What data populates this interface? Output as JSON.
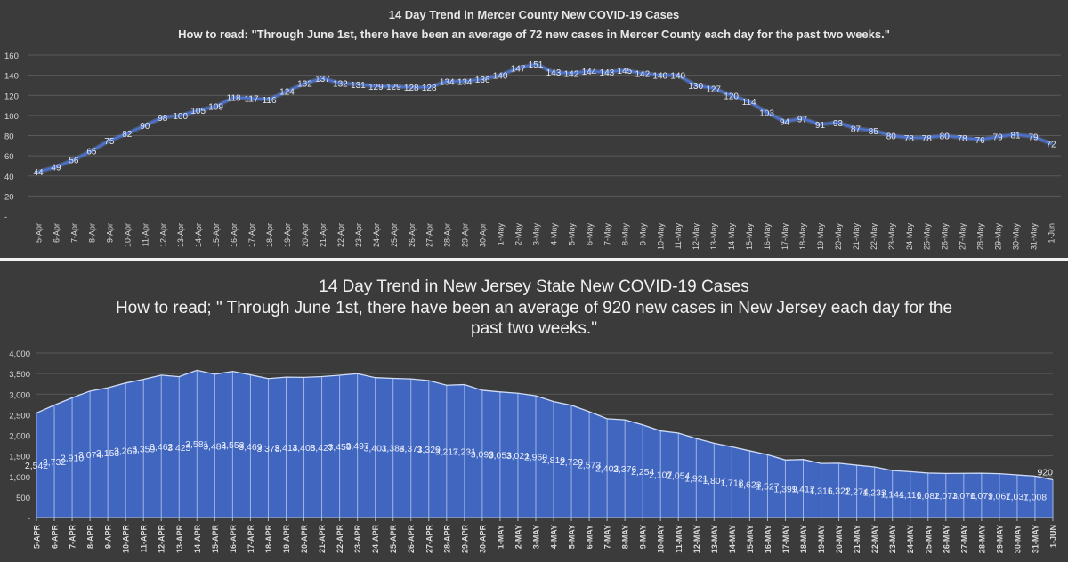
{
  "chart_data": [
    {
      "type": "line",
      "title": "14 Day Trend in Mercer County New COVID-19 Cases",
      "subtitle": "How to read: \"Through June 1st, there have been an average of 72 new cases in Mercer County each day for the past two weeks.\"",
      "xlabel": "",
      "ylabel": "",
      "ylim": [
        0,
        160
      ],
      "yticks": [
        "-",
        "20",
        "40",
        "60",
        "80",
        "100",
        "120",
        "140",
        "160"
      ],
      "grid": true,
      "color": "#4a72d0",
      "categories": [
        "5-Apr",
        "6-Apr",
        "7-Apr",
        "8-Apr",
        "9-Apr",
        "10-Apr",
        "11-Apr",
        "12-Apr",
        "13-Apr",
        "14-Apr",
        "15-Apr",
        "16-Apr",
        "17-Apr",
        "18-Apr",
        "19-Apr",
        "20-Apr",
        "21-Apr",
        "22-Apr",
        "23-Apr",
        "24-Apr",
        "25-Apr",
        "26-Apr",
        "27-Apr",
        "28-Apr",
        "29-Apr",
        "30-Apr",
        "1-May",
        "2-May",
        "3-May",
        "4-May",
        "5-May",
        "6-May",
        "7-May",
        "8-May",
        "9-May",
        "10-May",
        "11-May",
        "12-May",
        "13-May",
        "14-May",
        "15-May",
        "16-May",
        "17-May",
        "18-May",
        "19-May",
        "20-May",
        "21-May",
        "22-May",
        "23-May",
        "24-May",
        "25-May",
        "26-May",
        "27-May",
        "28-May",
        "29-May",
        "30-May",
        "31-May",
        "1-Jun"
      ],
      "values": [
        44,
        49,
        56,
        65,
        75,
        82,
        90,
        98,
        100,
        105,
        109,
        118,
        117,
        116,
        124,
        132,
        137,
        132,
        131,
        129,
        129,
        128,
        128,
        134,
        134,
        136,
        140,
        147,
        151,
        143,
        142,
        144,
        143,
        145,
        142,
        140,
        140,
        130,
        127,
        120,
        114,
        103,
        94,
        97,
        91,
        93,
        87,
        85,
        80,
        78,
        78,
        80,
        78,
        76,
        79,
        81,
        79,
        72
      ]
    },
    {
      "type": "area",
      "title": "14 Day Trend in New Jersey State New COVID-19 Cases",
      "subtitle": "How to read; \" Through June 1st, there have been an average of 920 new cases in New Jersey each day for the past two weeks.\"",
      "subtitle_lines": [
        "How to read; \" Through June 1st, there have been an average of 920 new cases in New Jersey each day for the",
        "past two weeks.\""
      ],
      "xlabel": "",
      "ylabel": "",
      "ylim": [
        0,
        4000
      ],
      "yticks": [
        "-",
        "500",
        "1,000",
        "1,500",
        "2,000",
        "2,500",
        "3,000",
        "3,500",
        "4,000"
      ],
      "grid": true,
      "color": "#4066c0",
      "categories": [
        "5-APR",
        "6-APR",
        "7-APR",
        "8-APR",
        "9-APR",
        "10-APR",
        "11-APR",
        "12-APR",
        "13-APR",
        "14-APR",
        "15-APR",
        "16-APR",
        "17-APR",
        "18-APR",
        "19-APR",
        "20-APR",
        "21-APR",
        "22-APR",
        "23-APR",
        "24-APR",
        "25-APR",
        "26-APR",
        "27-APR",
        "28-APR",
        "29-APR",
        "30-APR",
        "1-MAY",
        "2-MAY",
        "3-MAY",
        "4-MAY",
        "5-MAY",
        "6-MAY",
        "7-MAY",
        "8-MAY",
        "9-MAY",
        "10-MAY",
        "11-MAY",
        "12-MAY",
        "13-MAY",
        "14-MAY",
        "15-MAY",
        "16-MAY",
        "17-MAY",
        "18-MAY",
        "19-MAY",
        "20-MAY",
        "21-MAY",
        "22-MAY",
        "23-MAY",
        "24-MAY",
        "25-MAY",
        "26-MAY",
        "27-MAY",
        "28-MAY",
        "29-MAY",
        "30-MAY",
        "31-MAY",
        "1-JUN"
      ],
      "values": [
        2542,
        2732,
        2910,
        3074,
        3153,
        3269,
        3359,
        3462,
        3425,
        3581,
        3484,
        3553,
        3469,
        3378,
        3414,
        3408,
        3427,
        3459,
        3497,
        3401,
        3384,
        3371,
        3329,
        3217,
        3231,
        3093,
        3053,
        3021,
        2960,
        2819,
        2729,
        2573,
        2403,
        2376,
        2254,
        2107,
        2054,
        1921,
        1807,
        1718,
        1623,
        1527,
        1399,
        1412,
        1316,
        1322,
        1274,
        1233,
        1144,
        1116,
        1082,
        1073,
        1076,
        1079,
        1067,
        1037,
        1008,
        920
      ]
    }
  ]
}
